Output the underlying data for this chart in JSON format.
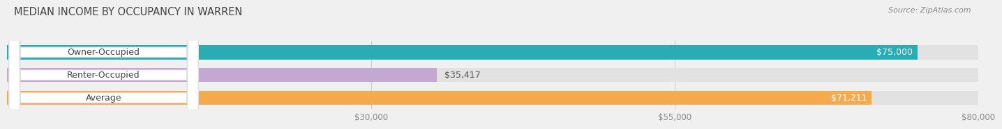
{
  "title": "MEDIAN INCOME BY OCCUPANCY IN WARREN",
  "source": "Source: ZipAtlas.com",
  "categories": [
    "Owner-Occupied",
    "Renter-Occupied",
    "Average"
  ],
  "values": [
    75000,
    35417,
    71211
  ],
  "bar_colors": [
    "#29adb5",
    "#c4a8d4",
    "#f5aa4e"
  ],
  "bar_labels": [
    "$75,000",
    "$35,417",
    "$71,211"
  ],
  "xlim": [
    0,
    80000
  ],
  "xticks": [
    30000,
    55000,
    80000
  ],
  "xtick_labels": [
    "$30,000",
    "$55,000",
    "$80,000"
  ],
  "bg_color": "#f0f0f0",
  "bar_bg_color": "#e2e2e2",
  "label_font_color": "#444444",
  "title_font_color": "#444444",
  "bar_height": 0.62,
  "label_inside_color": "#ffffff",
  "label_outside_color": "#555555",
  "pill_color": "#ffffff",
  "pill_edge_color": "#dddddd",
  "grid_color": "#cccccc",
  "source_color": "#888888"
}
